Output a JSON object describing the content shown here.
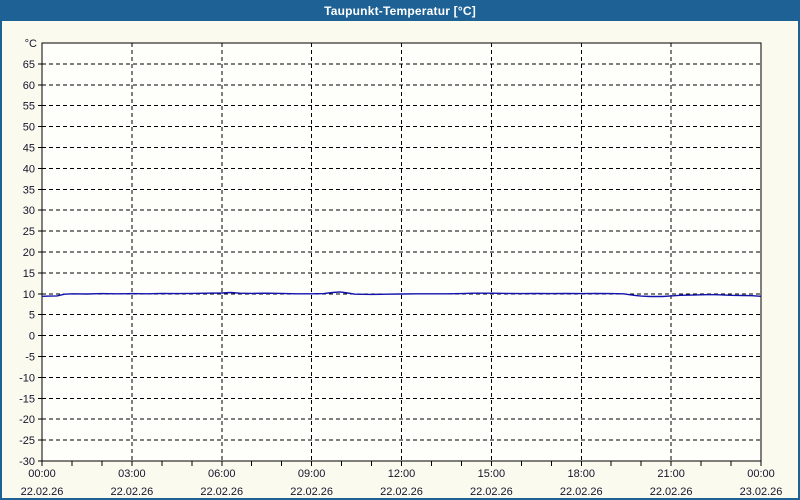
{
  "window": {
    "title": "Taupunkt-Temperatur [°C]"
  },
  "colors": {
    "titlebar": "#1e6295",
    "border": "#1e6295",
    "background": "#fbfaef",
    "plot_background": "#fefefb",
    "grid": "#000000",
    "label_text": "#14142b",
    "series_line": "#1212ad"
  },
  "chart_data": {
    "type": "line",
    "title": "Taupunkt-Temperatur [°C]",
    "ylabel": "°C",
    "ylim": [
      -30,
      70
    ],
    "y_tick_step": 5,
    "y_ticks": [
      65,
      60,
      55,
      50,
      45,
      40,
      35,
      30,
      25,
      20,
      15,
      10,
      5,
      0,
      -5,
      -10,
      -15,
      -20,
      -25,
      -30
    ],
    "x_minor_step_hours": 1,
    "x_major_step_hours": 3,
    "xlim_hours": [
      0,
      24
    ],
    "grid": "dashed",
    "x_ticks": [
      {
        "hour": 0,
        "time": "00:00",
        "date": "22.02.26"
      },
      {
        "hour": 3,
        "time": "03:00",
        "date": "22.02.26"
      },
      {
        "hour": 6,
        "time": "06:00",
        "date": "22.02.26"
      },
      {
        "hour": 9,
        "time": "09:00",
        "date": "22.02.26"
      },
      {
        "hour": 12,
        "time": "12:00",
        "date": "22.02.26"
      },
      {
        "hour": 15,
        "time": "15:00",
        "date": "22.02.26"
      },
      {
        "hour": 18,
        "time": "18:00",
        "date": "22.02.26"
      },
      {
        "hour": 21,
        "time": "21:00",
        "date": "22.02.26"
      },
      {
        "hour": 24,
        "time": "00:00",
        "date": "23.02.26"
      }
    ],
    "series": [
      {
        "name": "Taupunkt-Temperatur",
        "color": "#1212ad",
        "points": [
          [
            0,
            9.4
          ],
          [
            0.25,
            9.45
          ],
          [
            0.5,
            9.5
          ],
          [
            0.75,
            9.9
          ],
          [
            1,
            10.0
          ],
          [
            1.5,
            9.95
          ],
          [
            2,
            10.05
          ],
          [
            2.5,
            10.0
          ],
          [
            3,
            10.05
          ],
          [
            3.5,
            10.0
          ],
          [
            4,
            10.1
          ],
          [
            4.5,
            10.05
          ],
          [
            5,
            10.1
          ],
          [
            5.5,
            10.15
          ],
          [
            6,
            10.2
          ],
          [
            6.3,
            10.3
          ],
          [
            6.6,
            10.15
          ],
          [
            7,
            10.1
          ],
          [
            7.5,
            10.15
          ],
          [
            8,
            10.1
          ],
          [
            8.5,
            10.0
          ],
          [
            9,
            10.0
          ],
          [
            9.4,
            10.05
          ],
          [
            9.7,
            10.3
          ],
          [
            9.95,
            10.45
          ],
          [
            10.2,
            10.2
          ],
          [
            10.45,
            9.9
          ],
          [
            11,
            9.85
          ],
          [
            11.5,
            9.9
          ],
          [
            12,
            9.95
          ],
          [
            12.5,
            10.0
          ],
          [
            13,
            10.0
          ],
          [
            13.5,
            10.0
          ],
          [
            14,
            10.05
          ],
          [
            14.4,
            10.15
          ],
          [
            15,
            10.15
          ],
          [
            15.5,
            10.1
          ],
          [
            16,
            10.05
          ],
          [
            16.5,
            10.1
          ],
          [
            17,
            10.05
          ],
          [
            17.5,
            10.1
          ],
          [
            18,
            10.05
          ],
          [
            18.5,
            10.1
          ],
          [
            19,
            10.05
          ],
          [
            19.4,
            10.0
          ],
          [
            19.7,
            9.7
          ],
          [
            20,
            9.45
          ],
          [
            20.3,
            9.35
          ],
          [
            20.7,
            9.35
          ],
          [
            21,
            9.5
          ],
          [
            21.3,
            9.65
          ],
          [
            21.7,
            9.7
          ],
          [
            22,
            9.75
          ],
          [
            22.3,
            9.8
          ],
          [
            22.6,
            9.75
          ],
          [
            23,
            9.65
          ],
          [
            23.4,
            9.6
          ],
          [
            23.7,
            9.55
          ],
          [
            24,
            9.4
          ]
        ]
      }
    ]
  }
}
